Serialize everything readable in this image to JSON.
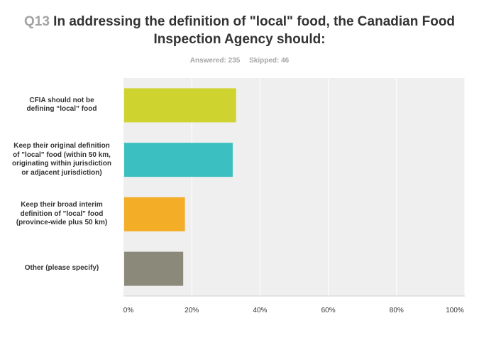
{
  "header": {
    "question_number": "Q13",
    "title_line1": "In addressing the definition of \"local\" food, the Canadian Food",
    "title_line2": "Inspection Agency should:",
    "answered": "Answered: 235",
    "skipped": "Skipped: 46"
  },
  "chart_data": {
    "type": "bar",
    "orientation": "horizontal",
    "title": "Q13 In addressing the definition of \"local\" food, the Canadian Food Inspection Agency should:",
    "categories": [
      [
        "CFIA should not be",
        "defining “local” food"
      ],
      [
        "Keep their original definition",
        "of \"local\" food (within 50 km,",
        "originating within jurisdiction",
        "or adjacent jurisdiction)"
      ],
      [
        "Keep their broad interim",
        "definition of \"local\" food",
        "(province-wide plus 50 km)"
      ],
      [
        "Other (please specify)"
      ]
    ],
    "values": [
      33,
      32,
      18,
      17.5
    ],
    "colors": [
      "#cfd32f",
      "#3cbfc0",
      "#f3ad26",
      "#8b8a7a"
    ],
    "xlim": [
      0,
      100
    ],
    "ticks": [
      0,
      20,
      40,
      60,
      80,
      100
    ],
    "tick_labels": [
      "0%",
      "20%",
      "40%",
      "60%",
      "80%",
      "100%"
    ],
    "xlabel": "",
    "ylabel": "",
    "grid": true
  }
}
